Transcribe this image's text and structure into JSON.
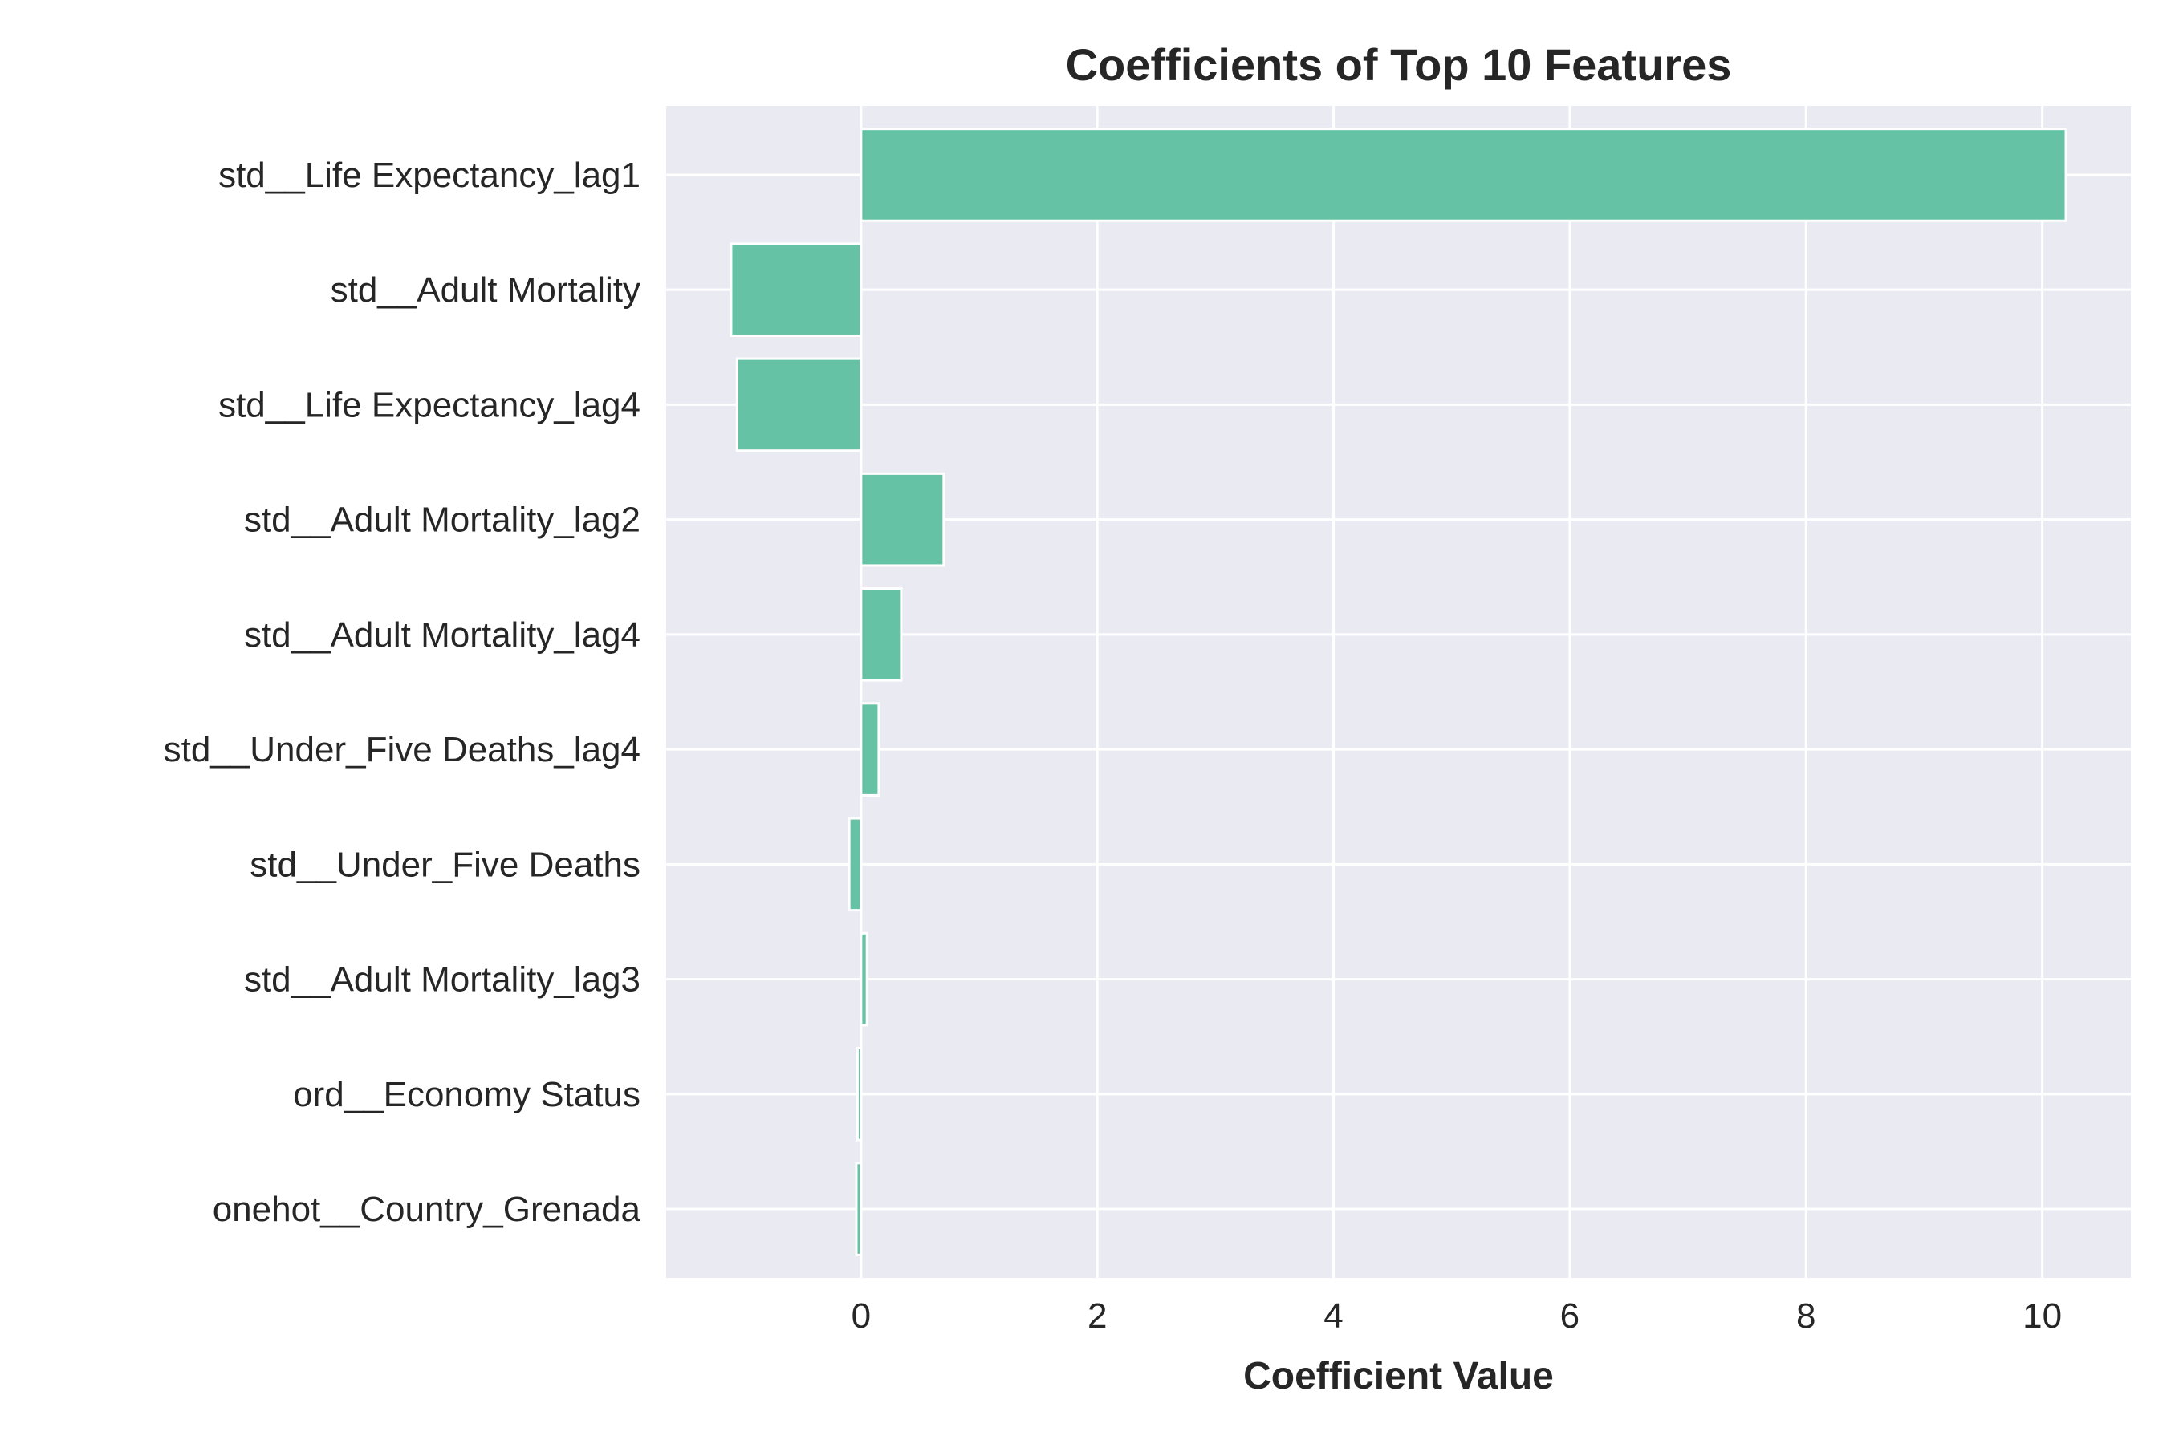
{
  "chart_data": {
    "type": "bar",
    "orientation": "horizontal",
    "title": "Coefficients of Top 10 Features",
    "xlabel": "Coefficient Value",
    "ylabel": "",
    "xlim": [
      -1.65,
      10.75
    ],
    "xticks": [
      0,
      2,
      4,
      6,
      8,
      10
    ],
    "grid": true,
    "bar_color": "#66c2a5",
    "background_color": "#eaeaf2",
    "categories": [
      "std__Life Expectancy_lag1",
      "std__Adult Mortality",
      "std__Life Expectancy_lag4",
      "std__Adult Mortality_lag2",
      "std__Adult Mortality_lag4",
      "std__Under_Five Deaths_lag4",
      "std__Under_Five Deaths",
      "std__Adult Mortality_lag3",
      "ord__Economy Status",
      "onehot__Country_Grenada"
    ],
    "values": [
      10.2,
      -1.1,
      -1.05,
      0.7,
      0.34,
      0.15,
      -0.1,
      0.05,
      -0.03,
      -0.04
    ]
  }
}
